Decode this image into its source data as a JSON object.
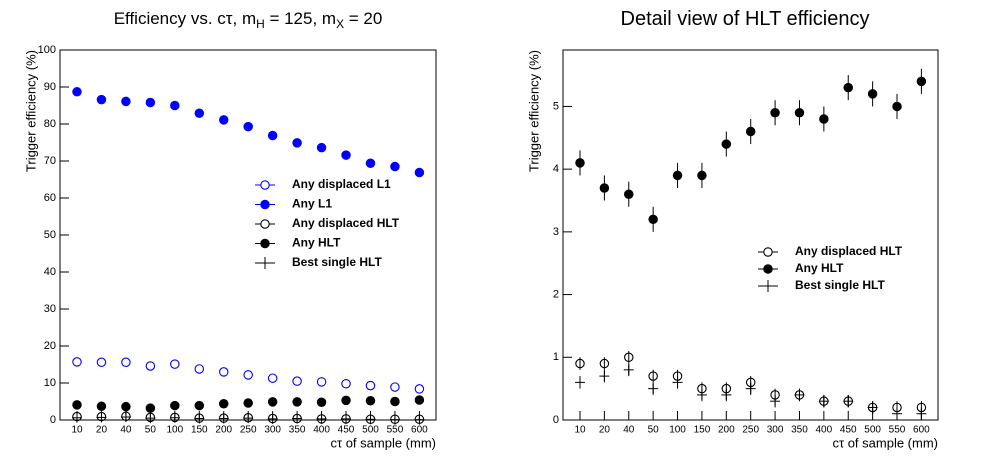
{
  "chart_data": [
    {
      "type": "scatter",
      "title": [
        "Efficiency vs. cτ, m",
        "H",
        " = 125, m",
        "X",
        " = 20"
      ],
      "x_label": "cτ of sample (mm)",
      "y_label": "Trigger efficiency (%)",
      "categories": [
        "10",
        "20",
        "40",
        "50",
        "100",
        "150",
        "200",
        "250",
        "300",
        "350",
        "400",
        "450",
        "500",
        "550",
        "600"
      ],
      "ylim": [
        0,
        100
      ],
      "yticks": [
        0,
        10,
        20,
        30,
        40,
        50,
        60,
        70,
        80,
        90,
        100
      ],
      "legend": "center right",
      "series": [
        {
          "name": "Any displaced L1",
          "color": "#0000ff",
          "marker": "open",
          "values": [
            15.7,
            15.6,
            15.6,
            14.6,
            15.1,
            13.8,
            13.0,
            12.2,
            11.3,
            10.5,
            10.3,
            9.8,
            9.3,
            8.9,
            8.4
          ]
        },
        {
          "name": "Any L1",
          "color": "#0000ff",
          "marker": "filled",
          "values": [
            88.7,
            86.6,
            86.1,
            85.8,
            85.0,
            82.9,
            81.1,
            79.3,
            76.9,
            74.9,
            73.6,
            71.6,
            69.4,
            68.5,
            66.9
          ]
        },
        {
          "name": "Any displaced HLT",
          "color": "#000000",
          "marker": "open",
          "values": [
            0.9,
            0.9,
            1.0,
            0.7,
            0.7,
            0.5,
            0.5,
            0.6,
            0.4,
            0.4,
            0.3,
            0.3,
            0.2,
            0.2,
            0.2
          ]
        },
        {
          "name": "Any HLT",
          "color": "#000000",
          "marker": "filled",
          "values": [
            4.1,
            3.7,
            3.6,
            3.2,
            3.9,
            3.9,
            4.4,
            4.6,
            4.9,
            4.9,
            4.8,
            5.3,
            5.2,
            5.0,
            5.4
          ]
        },
        {
          "name": "Best single HLT",
          "color": "#000000",
          "marker": "cross",
          "values": [
            0.6,
            0.7,
            0.8,
            0.5,
            0.6,
            0.4,
            0.4,
            0.5,
            0.3,
            0.4,
            0.3,
            0.3,
            0.2,
            0.1,
            0.1
          ]
        }
      ]
    },
    {
      "type": "scatter",
      "title": [
        "Detail view of HLT efficiency"
      ],
      "x_label": "cτ of sample (mm)",
      "y_label": "Trigger efficiency (%)",
      "categories": [
        "10",
        "20",
        "40",
        "50",
        "100",
        "150",
        "200",
        "250",
        "300",
        "350",
        "400",
        "450",
        "500",
        "550",
        "600"
      ],
      "ylim": [
        0,
        5.9
      ],
      "yticks": [
        0,
        1,
        2,
        3,
        4,
        5
      ],
      "legend": "center right",
      "series": [
        {
          "name": "Any displaced HLT",
          "color": "#000000",
          "marker": "open",
          "values": [
            0.9,
            0.9,
            1.0,
            0.7,
            0.7,
            0.5,
            0.5,
            0.6,
            0.4,
            0.4,
            0.3,
            0.3,
            0.2,
            0.2,
            0.2
          ],
          "errors": [
            0.1,
            0.1,
            0.1,
            0.1,
            0.1,
            0.1,
            0.1,
            0.1,
            0.1,
            0.1,
            0.1,
            0.1,
            0.1,
            0.1,
            0.1
          ]
        },
        {
          "name": "Any HLT",
          "color": "#000000",
          "marker": "filled",
          "values": [
            4.1,
            3.7,
            3.6,
            3.2,
            3.9,
            3.9,
            4.4,
            4.6,
            4.9,
            4.9,
            4.8,
            5.3,
            5.2,
            5.0,
            5.4
          ],
          "errors": [
            0.2,
            0.2,
            0.2,
            0.2,
            0.2,
            0.2,
            0.2,
            0.2,
            0.2,
            0.2,
            0.2,
            0.2,
            0.2,
            0.2,
            0.2
          ]
        },
        {
          "name": "Best single HLT",
          "color": "#000000",
          "marker": "cross",
          "values": [
            0.6,
            0.7,
            0.8,
            0.5,
            0.6,
            0.4,
            0.4,
            0.5,
            0.3,
            0.4,
            0.3,
            0.3,
            0.2,
            0.1,
            0.1
          ],
          "errors": [
            0.1,
            0.1,
            0.1,
            0.1,
            0.1,
            0.1,
            0.1,
            0.1,
            0.1,
            0.1,
            0.1,
            0.1,
            0.1,
            0.1,
            0.1
          ]
        }
      ]
    }
  ]
}
